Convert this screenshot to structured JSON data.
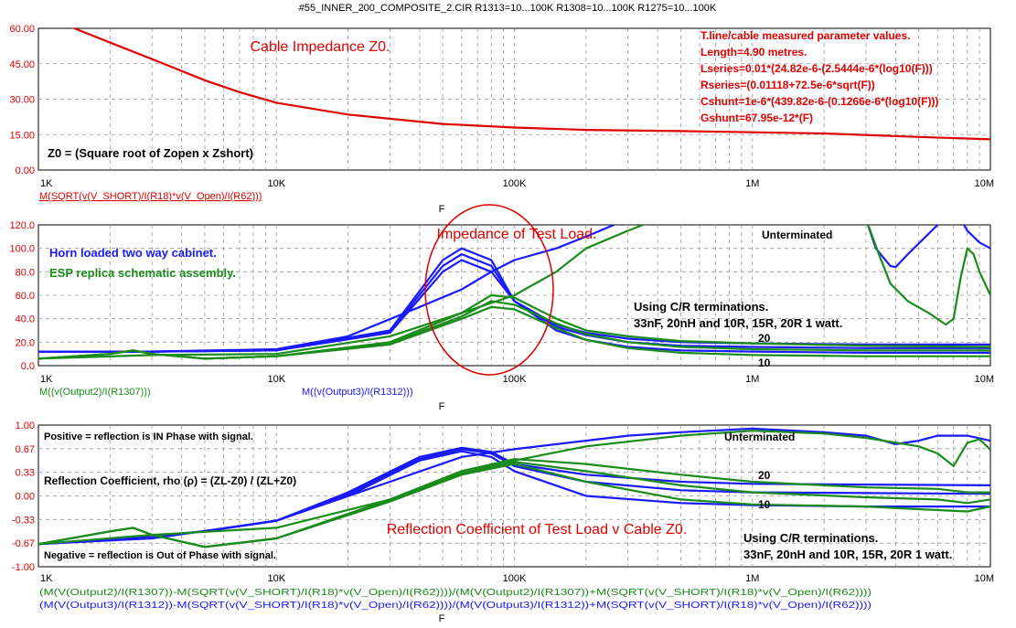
{
  "window_title": "#55_INNER_200_COMPOSITE_2.CIR R1313=10...100K R1308=10...100K R1275=10...100K",
  "x_axis": {
    "tick_labels": [
      "1K",
      "10K",
      "100K",
      "1M",
      "10M"
    ],
    "tick_values": [
      1000,
      10000,
      100000,
      1000000,
      10000000
    ],
    "variable_label": "F",
    "scale": "log",
    "range": [
      1000,
      10000000
    ]
  },
  "colors": {
    "red": "#e00000",
    "blue": "#1a1aff",
    "green": "#1a8c1a",
    "grid": "#9a9a9a",
    "text": "#000000"
  },
  "chart_data": [
    {
      "type": "line",
      "panel": "impedance-z0",
      "title": "Cable Impedance Z0.",
      "y_tick_labels": [
        "60.00",
        "45.00",
        "30.00",
        "15.00",
        "0.00"
      ],
      "ylim": [
        0,
        60
      ],
      "xscale": "log",
      "grid": true,
      "annotations": {
        "formula": "Z0 = (Square root of Zopen x Zshort)",
        "params": [
          "T.line/cable measured parameter values.",
          "Length=4.90 metres.",
          "Lseries=0.01*(24.82e-6-(2.5444e-6*(log10(F)))",
          "Rseries=(0.01118+72.5e-6*sqrt(F))",
          "Cshunt=1e-6*(439.82e-6-(0.1266e-6*(log10(F)))",
          "Gshunt=67.95e-12*(F)"
        ]
      },
      "trace_labels": [
        "M(SQRT(v(V_SHORT)/I(R18)*v(V_Open)/I(R62)))"
      ],
      "series": [
        {
          "name": "M(SQRT(v(V_SHORT)/I(R18)*v(V_Open)/I(R62)))",
          "x": [
            1000,
            1200,
            1500,
            2000,
            3000,
            5000,
            7000,
            10000,
            20000,
            50000,
            100000,
            200000,
            500000,
            1000000,
            2000000,
            5000000,
            10000000
          ],
          "y": [
            68,
            63,
            59,
            54,
            47,
            38,
            33,
            28.5,
            23.5,
            19.5,
            18,
            17,
            16.5,
            16,
            15.5,
            14,
            13
          ]
        }
      ]
    },
    {
      "type": "line",
      "panel": "test-load-impedance",
      "title": "Impedance of Test Load.",
      "y_tick_labels": [
        "120.0",
        "100.0",
        "80.0",
        "60.0",
        "40.0",
        "20.0",
        "0.0"
      ],
      "ylim": [
        0,
        120
      ],
      "xscale": "log",
      "grid": true,
      "annotations": {
        "legend_blue": "Horn loaded two way cabinet.",
        "legend_green": "ESP replica schematic assembly.",
        "unterminated": "Unterminated",
        "label_20": "20",
        "label_10": "10",
        "terminations_line1": "Using C/R terminations.",
        "terminations_line2": "33nF, 20nH and 10R, 15R, 20R 1 watt."
      },
      "trace_labels": [
        "M((v(Output2)/I(R1307)))",
        "M((v(Output3)/I(R1312)))"
      ],
      "series": [
        {
          "name": "Horn loaded two way cabinet.",
          "color": "blue",
          "x": [
            1000,
            3000,
            10000,
            30000,
            50000,
            60000,
            80000,
            100000,
            150000,
            200000,
            300000,
            500000,
            1000000,
            3000000,
            10000000
          ],
          "y": [
            12,
            12,
            13,
            30,
            90,
            100,
            90,
            55,
            35,
            28,
            23,
            20,
            19,
            18,
            18
          ]
        },
        {
          "name": "",
          "color": "blue",
          "x": [
            1000,
            3000,
            10000,
            30000,
            50000,
            60000,
            80000,
            100000,
            150000,
            200000,
            300000,
            500000,
            1000000,
            3000000,
            10000000
          ],
          "y": [
            12,
            12,
            13,
            29,
            85,
            95,
            85,
            55,
            33,
            26,
            20,
            17,
            16,
            15,
            15
          ]
        },
        {
          "name": "",
          "color": "blue",
          "x": [
            1000,
            3000,
            10000,
            30000,
            50000,
            60000,
            80000,
            100000,
            150000,
            200000,
            300000,
            500000,
            1000000,
            3000000,
            10000000
          ],
          "y": [
            12,
            12,
            13,
            28,
            80,
            90,
            80,
            55,
            30,
            22,
            16,
            13,
            12,
            11,
            11
          ]
        },
        {
          "name": "",
          "color": "blue",
          "x": [
            1000,
            3000,
            10000,
            20000,
            40000,
            60000,
            80000,
            100000,
            150000,
            200000,
            300000
          ],
          "y": [
            12,
            12,
            14,
            25,
            50,
            65,
            80,
            90,
            100,
            110,
            125
          ]
        },
        {
          "name": "",
          "color": "blue",
          "x": [
            3000000,
            3300000,
            3800000,
            4000000,
            4500000,
            6000000,
            7000000,
            8000000,
            9000000,
            10000000
          ],
          "y": [
            125,
            100,
            85,
            84,
            95,
            120,
            135,
            115,
            105,
            100
          ]
        },
        {
          "name": "ESP replica schematic assembly.",
          "color": "green",
          "x": [
            1000,
            2000,
            2500,
            3000,
            5000,
            10000,
            30000,
            60000,
            80000,
            100000,
            150000,
            200000,
            300000,
            500000,
            1000000,
            3000000,
            10000000
          ],
          "y": [
            6,
            10,
            13,
            10,
            6,
            8,
            20,
            45,
            60,
            58,
            40,
            30,
            25,
            21,
            19,
            17,
            16
          ]
        },
        {
          "name": "",
          "color": "green",
          "x": [
            1000,
            2000,
            2500,
            3000,
            5000,
            10000,
            30000,
            60000,
            80000,
            100000,
            150000,
            200000,
            300000,
            500000,
            1000000,
            3000000,
            10000000
          ],
          "y": [
            6,
            10,
            13,
            10,
            6,
            8,
            19,
            42,
            55,
            52,
            36,
            27,
            20,
            16,
            14,
            13,
            13
          ]
        },
        {
          "name": "",
          "color": "green",
          "x": [
            1000,
            2000,
            2500,
            3000,
            5000,
            10000,
            30000,
            60000,
            80000,
            100000,
            150000,
            200000,
            300000,
            500000,
            1000000,
            3000000,
            10000000
          ],
          "y": [
            6,
            10,
            13,
            10,
            6,
            8,
            18,
            40,
            50,
            48,
            32,
            22,
            15,
            11,
            9,
            8,
            8
          ]
        },
        {
          "name": "",
          "color": "green",
          "x": [
            1000,
            3000,
            10000,
            30000,
            60000,
            100000,
            150000,
            200000,
            300000,
            400000
          ],
          "y": [
            6,
            9,
            10,
            25,
            45,
            60,
            80,
            100,
            115,
            125
          ]
        },
        {
          "name": "",
          "color": "green",
          "x": [
            3000000,
            3400000,
            3800000,
            4500000,
            5500000,
            6500000,
            7000000,
            7500000,
            8000000,
            8500000,
            9000000,
            10000000
          ],
          "y": [
            125,
            95,
            70,
            55,
            45,
            35,
            40,
            75,
            100,
            95,
            80,
            60
          ]
        }
      ]
    },
    {
      "type": "line",
      "panel": "reflection-coefficient",
      "title": "Reflection Coefficient of Test Load v Cable Z0.",
      "y_tick_labels": [
        "1.00",
        "0.67",
        "0.33",
        "0.00",
        "-0.33",
        "-0.67",
        "-1.00"
      ],
      "ylim": [
        -1,
        1
      ],
      "xscale": "log",
      "grid": true,
      "annotations": {
        "positive": "Positive = reflection is IN Phase with signal.",
        "negative": "Negative = reflection is Out of Phase with signal.",
        "formula": "Reflection Coefficient, rho (ρ) = (ZL-Z0) / (ZL+Z0)",
        "unterminated": "Unterminated",
        "label_20": "20",
        "label_10": "10",
        "terminations_line1": "Using C/R terminations.",
        "terminations_line2": "33nF, 20nH and 10R, 15R, 20R 1 watt."
      },
      "trace_labels": [
        "(M(V(Output2)/I(R1307))-M(SQRT(v(V_SHORT)/I(R18)*v(V_Open)/I(R62))))/(M(V(Output2)/I(R1307))+M(SQRT(v(V_SHORT)/I(R18)*v(V_Open)/I(R62))))",
        "(M(V(Output3)/I(R1312))-M(SQRT(v(V_SHORT)/I(R18)*v(V_Open)/I(R62))))/(M(V(Output3)/I(R1312))+M(SQRT(v(V_SHORT)/I(R18)*v(V_Open)/I(R62))))"
      ],
      "series": [
        {
          "name": "",
          "color": "blue",
          "x": [
            1000,
            2000,
            5000,
            10000,
            20000,
            40000,
            60000,
            80000,
            100000,
            200000,
            500000,
            1000000,
            3000000,
            10000000
          ],
          "y": [
            -0.68,
            -0.62,
            -0.5,
            -0.35,
            0.05,
            0.55,
            0.68,
            0.62,
            0.45,
            0.3,
            0.2,
            0.17,
            0.16,
            0.15
          ]
        },
        {
          "name": "",
          "color": "blue",
          "x": [
            1000,
            2000,
            5000,
            10000,
            20000,
            40000,
            60000,
            80000,
            100000,
            200000,
            500000,
            1000000,
            3000000,
            10000000
          ],
          "y": [
            -0.68,
            -0.62,
            -0.5,
            -0.35,
            0.03,
            0.52,
            0.66,
            0.6,
            0.42,
            0.2,
            0.08,
            0.05,
            0.04,
            0.03
          ]
        },
        {
          "name": "",
          "color": "blue",
          "x": [
            1000,
            2000,
            5000,
            10000,
            20000,
            40000,
            60000,
            80000,
            100000,
            200000,
            500000,
            1000000,
            3000000,
            10000000
          ],
          "y": [
            -0.68,
            -0.62,
            -0.5,
            -0.35,
            0.0,
            0.5,
            0.63,
            0.55,
            0.35,
            0.0,
            -0.1,
            -0.13,
            -0.15,
            -0.15
          ]
        },
        {
          "name": "",
          "color": "blue",
          "x": [
            1000,
            3000,
            10000,
            30000,
            60000,
            100000,
            200000,
            300000,
            500000,
            1000000,
            2000000,
            3000000,
            4000000,
            5000000,
            6000000,
            8000000,
            10000000
          ],
          "y": [
            -0.68,
            -0.6,
            -0.35,
            0.2,
            0.55,
            0.66,
            0.78,
            0.85,
            0.9,
            0.95,
            0.9,
            0.85,
            0.73,
            0.78,
            0.85,
            0.85,
            0.78
          ]
        },
        {
          "name": "",
          "color": "green",
          "x": [
            1000,
            2000,
            2500,
            3000,
            5000,
            10000,
            30000,
            60000,
            100000,
            200000,
            500000,
            1000000,
            3000000,
            6000000,
            8000000,
            10000000
          ],
          "y": [
            -0.68,
            -0.5,
            -0.45,
            -0.55,
            -0.72,
            -0.6,
            -0.05,
            0.35,
            0.52,
            0.45,
            0.3,
            0.2,
            0.12,
            0.1,
            0.05,
            0.05
          ]
        },
        {
          "name": "",
          "color": "green",
          "x": [
            1000,
            2000,
            2500,
            3000,
            5000,
            10000,
            30000,
            60000,
            100000,
            200000,
            500000,
            1000000,
            3000000,
            6000000,
            8000000,
            10000000
          ],
          "y": [
            -0.68,
            -0.5,
            -0.45,
            -0.55,
            -0.72,
            -0.6,
            -0.05,
            0.32,
            0.48,
            0.35,
            0.15,
            0.05,
            -0.02,
            -0.05,
            -0.1,
            -0.05
          ]
        },
        {
          "name": "",
          "color": "green",
          "x": [
            1000,
            2000,
            2500,
            3000,
            5000,
            10000,
            30000,
            60000,
            100000,
            200000,
            500000,
            1000000,
            3000000,
            6000000,
            8000000,
            10000000
          ],
          "y": [
            -0.68,
            -0.5,
            -0.45,
            -0.55,
            -0.72,
            -0.6,
            -0.08,
            0.3,
            0.45,
            0.2,
            -0.05,
            -0.12,
            -0.15,
            -0.2,
            -0.22,
            -0.15
          ]
        },
        {
          "name": "",
          "color": "green",
          "x": [
            1000,
            3000,
            10000,
            30000,
            60000,
            100000,
            200000,
            500000,
            1000000,
            2000000,
            3000000,
            5000000,
            6000000,
            7000000,
            8000000,
            9000000,
            10000000
          ],
          "y": [
            -0.68,
            -0.55,
            -0.45,
            -0.05,
            0.35,
            0.5,
            0.7,
            0.85,
            0.92,
            0.88,
            0.82,
            0.7,
            0.6,
            0.42,
            0.75,
            0.8,
            0.65
          ]
        }
      ]
    }
  ]
}
